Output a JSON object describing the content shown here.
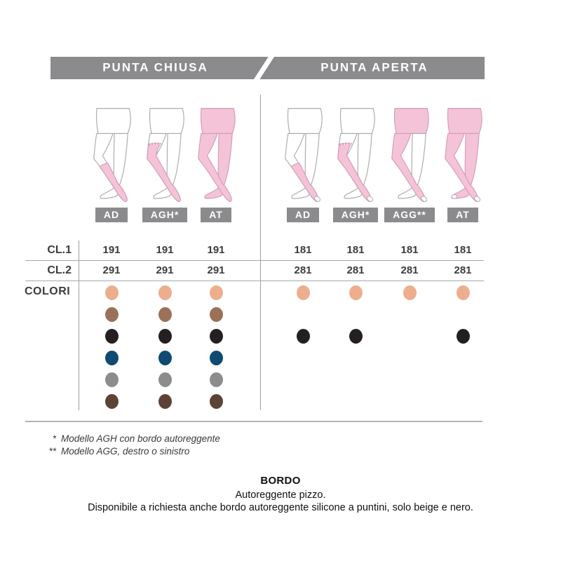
{
  "header": {
    "left_label": "PUNTA CHIUSA",
    "right_label": "PUNTA APERTA"
  },
  "row_labels": {
    "cl1": "CL.1",
    "cl2": "CL.2",
    "colori": "COLORI"
  },
  "groups": [
    {
      "name": "punta-chiusa",
      "toe": "closed",
      "columns": [
        {
          "label": "AD",
          "variant": "AD",
          "cl1": "191",
          "cl2": "291",
          "dots": [
            "beige",
            "brown",
            "black",
            "navy",
            "gray",
            "darkbrown"
          ]
        },
        {
          "label": "AGH*",
          "variant": "AGH",
          "cl1": "191",
          "cl2": "291",
          "dots": [
            "beige",
            "brown",
            "black",
            "navy",
            "gray",
            "darkbrown"
          ]
        },
        {
          "label": "AT",
          "variant": "AT",
          "cl1": "191",
          "cl2": "291",
          "dots": [
            "beige",
            "brown",
            "black",
            "navy",
            "gray",
            "darkbrown"
          ]
        }
      ]
    },
    {
      "name": "punta-aperta",
      "toe": "open",
      "columns": [
        {
          "label": "AD",
          "variant": "AD",
          "cl1": "181",
          "cl2": "281",
          "dots": [
            "beige",
            null,
            "black",
            null,
            null,
            null
          ]
        },
        {
          "label": "AGH*",
          "variant": "AGH",
          "cl1": "181",
          "cl2": "281",
          "dots": [
            "beige",
            null,
            "black",
            null,
            null,
            null
          ]
        },
        {
          "label": "AGG**",
          "variant": "AGG",
          "cl1": "181",
          "cl2": "281",
          "dots": [
            "beige",
            null,
            null,
            null,
            null,
            null
          ]
        },
        {
          "label": "AT",
          "variant": "AT",
          "cl1": "181",
          "cl2": "281",
          "dots": [
            "beige",
            null,
            "black",
            null,
            null,
            null
          ]
        }
      ]
    }
  ],
  "palette": {
    "beige": "#ecae8d",
    "brown": "#9b7159",
    "black": "#242021",
    "navy": "#0f4a72",
    "gray": "#8c8c8e",
    "darkbrown": "#5c4336",
    "ui_gray": "#8b8b8d",
    "stocking_pink": "#f5c3d8",
    "stocking_outline": "#d39bb8",
    "skin_outline": "#ababab"
  },
  "footnotes": [
    {
      "marker": "*",
      "text": "Modello AGH con bordo autoreggente"
    },
    {
      "marker": "**",
      "text": "Modello AGG, destro o sinistro"
    }
  ],
  "bordo": {
    "title": "BORDO",
    "line1": "Autoreggente pizzo.",
    "line2": "Disponibile a richiesta anche bordo autoreggente silicone a puntini, solo beige e nero."
  }
}
